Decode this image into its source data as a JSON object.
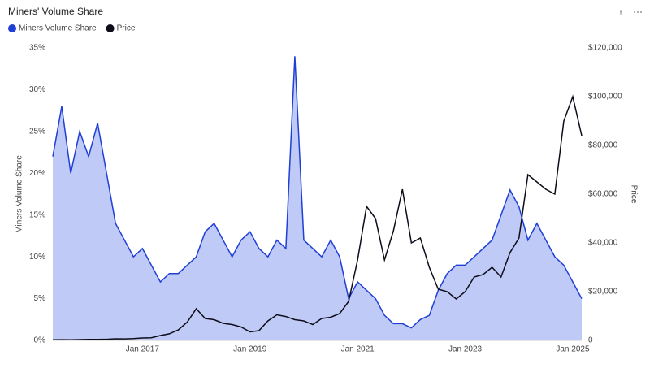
{
  "chart_data": {
    "type": "line",
    "title": "Miners' Volume Share",
    "categories": [
      null,
      null,
      null,
      null,
      null,
      null,
      null,
      null,
      null,
      null,
      "Jan 2017",
      null,
      null,
      null,
      null,
      null,
      null,
      null,
      null,
      null,
      null,
      null,
      "Jan 2019",
      null,
      null,
      null,
      null,
      null,
      null,
      null,
      null,
      null,
      null,
      null,
      "Jan 2021",
      null,
      null,
      null,
      null,
      null,
      null,
      null,
      null,
      null,
      null,
      null,
      "Jan 2023",
      null,
      null,
      null,
      null,
      null,
      null,
      null,
      null,
      null,
      null,
      null,
      "Jan 2025",
      null
    ],
    "series": [
      {
        "name": "Miners Volume Share",
        "color": "#1f3fd6",
        "fill": "#b9c4f5",
        "axis": "y",
        "values": [
          22,
          28,
          20,
          25,
          22,
          26,
          20,
          14,
          12,
          10,
          11,
          9,
          7,
          8,
          8,
          9,
          10,
          13,
          14,
          12,
          10,
          12,
          13,
          11,
          10,
          12,
          11,
          34,
          12,
          11,
          10,
          12,
          10,
          5,
          7,
          6,
          5,
          3,
          2,
          2,
          1.5,
          2.5,
          3,
          6,
          8,
          9,
          9,
          10,
          11,
          12,
          15,
          18,
          16,
          12,
          14,
          12,
          10,
          9,
          7,
          5
        ]
      },
      {
        "name": "Price",
        "color": "#0d0d1a",
        "axis": "y2",
        "values": [
          240,
          280,
          230,
          330,
          400,
          420,
          450,
          650,
          610,
          740,
          1000,
          1100,
          2000,
          2700,
          4300,
          7500,
          13000,
          9000,
          8500,
          7000,
          6500,
          5500,
          3500,
          4000,
          8000,
          10500,
          9800,
          8500,
          8000,
          6500,
          9000,
          9500,
          11000,
          16000,
          33000,
          55000,
          50000,
          33000,
          45000,
          62000,
          40000,
          42000,
          30000,
          21000,
          20000,
          17000,
          20000,
          26000,
          27000,
          30000,
          26000,
          36000,
          42000,
          68000,
          65000,
          62000,
          60000,
          90000,
          100000,
          84000
        ]
      }
    ],
    "ylabel": "Miners Volume Share",
    "y2label": "Price",
    "ylim": [
      0,
      35
    ],
    "yticks": [
      {
        "value": 0,
        "label": "0%"
      },
      {
        "value": 5,
        "label": "5%"
      },
      {
        "value": 10,
        "label": "10%"
      },
      {
        "value": 15,
        "label": "15%"
      },
      {
        "value": 20,
        "label": "20%"
      },
      {
        "value": 25,
        "label": "25%"
      },
      {
        "value": 30,
        "label": "30%"
      },
      {
        "value": 35,
        "label": "35%"
      }
    ],
    "y2lim": [
      0,
      120000
    ],
    "y2ticks": [
      0,
      {
        "value": 20000,
        "label": "$20,000"
      },
      {
        "value": 40000,
        "label": "$40,000"
      },
      {
        "value": 60000,
        "label": "$60,000"
      },
      {
        "value": 80000,
        "label": "$80,000"
      },
      {
        "value": 100000,
        "label": "$100,000"
      },
      {
        "value": 120000,
        "label": "$120,000"
      }
    ]
  }
}
